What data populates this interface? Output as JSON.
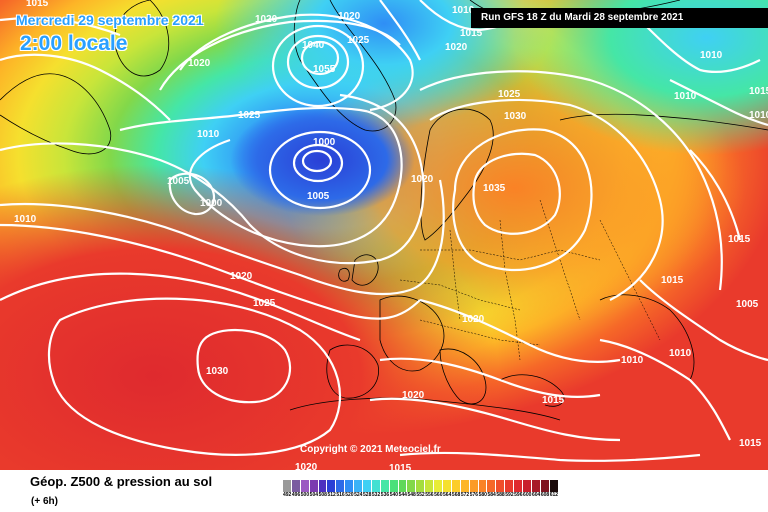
{
  "header": {
    "date": "Mercredi 29 septembre 2021",
    "time": "2:00 locale",
    "run": "Run GFS 18 Z du Mardi 28 septembre 2021"
  },
  "copyright": "Copyright © 2021 Meteociel.fr",
  "footer": {
    "title": "Géop. Z500 & pression au sol",
    "subtitle": "(+ 6h)"
  },
  "scale": {
    "labels": [
      "492",
      "496",
      "500",
      "504",
      "508",
      "512",
      "516",
      "520",
      "524",
      "528",
      "532",
      "536",
      "540",
      "544",
      "548",
      "552",
      "556",
      "560",
      "564",
      "568",
      "572",
      "576",
      "580",
      "584",
      "588",
      "592",
      "596",
      "600",
      "604",
      "608",
      "612"
    ],
    "colors": [
      "#9a9a9a",
      "#7a5ba0",
      "#9b59c2",
      "#7b3ab0",
      "#4d30c0",
      "#2a3fd6",
      "#2d6ae8",
      "#2f8ef5",
      "#3ab2f7",
      "#3fd0f4",
      "#43e0d2",
      "#45e6a6",
      "#4ae07a",
      "#5fd85a",
      "#82d84a",
      "#a4dd3e",
      "#c8e53a",
      "#e8ec36",
      "#f5e02e",
      "#fccd2a",
      "#fdb527",
      "#fc9b26",
      "#fa8226",
      "#f66828",
      "#f04e2a",
      "#e93a2c",
      "#df2a2e",
      "#c91f2c",
      "#a81a28",
      "#7f1320",
      "#1a0a0a"
    ]
  },
  "isobars": [
    "1015",
    "1020",
    "1020",
    "1025",
    "1020",
    "1010",
    "1015",
    "1040",
    "1055",
    "1020",
    "1025",
    "1010",
    "1025",
    "1030",
    "1010",
    "1010",
    "1015",
    "1010",
    "1000",
    "1005",
    "1000",
    "1005",
    "1010",
    "1035",
    "1020",
    "1015",
    "1020",
    "1015",
    "1025",
    "1005",
    "1020",
    "1010",
    "1010",
    "1030",
    "1020",
    "1015",
    "1015",
    "1020",
    "1015"
  ]
}
